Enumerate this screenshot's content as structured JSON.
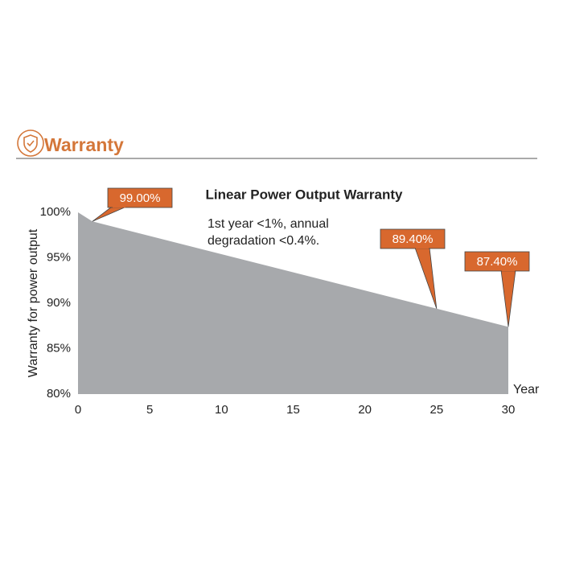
{
  "header": {
    "title": "Warranty"
  },
  "chart_data": {
    "type": "area",
    "title": "Linear Power Output Warranty",
    "annotation": [
      "1st year <1%, annual",
      "degradation <0.4%."
    ],
    "x_label": "Year",
    "y_label": "Warranty for power output",
    "x": [
      0,
      1,
      25,
      30
    ],
    "values": [
      100,
      99,
      89.4,
      87.4
    ],
    "value_labels": [
      null,
      "99.00%",
      "89.40%",
      "87.40%"
    ],
    "color": "#a7a9ac",
    "label_color": "#d8682e",
    "xlim": [
      0,
      30
    ],
    "xticks": [
      0,
      5,
      10,
      15,
      20,
      25,
      30
    ],
    "ylim": [
      80,
      100
    ],
    "yticks": [
      {
        "value": 80,
        "label": "80%"
      },
      {
        "value": 85,
        "label": "85%"
      },
      {
        "value": 90,
        "label": "90%"
      },
      {
        "value": 95,
        "label": "95%"
      },
      {
        "value": 100,
        "label": "100%"
      }
    ],
    "grid": false
  }
}
